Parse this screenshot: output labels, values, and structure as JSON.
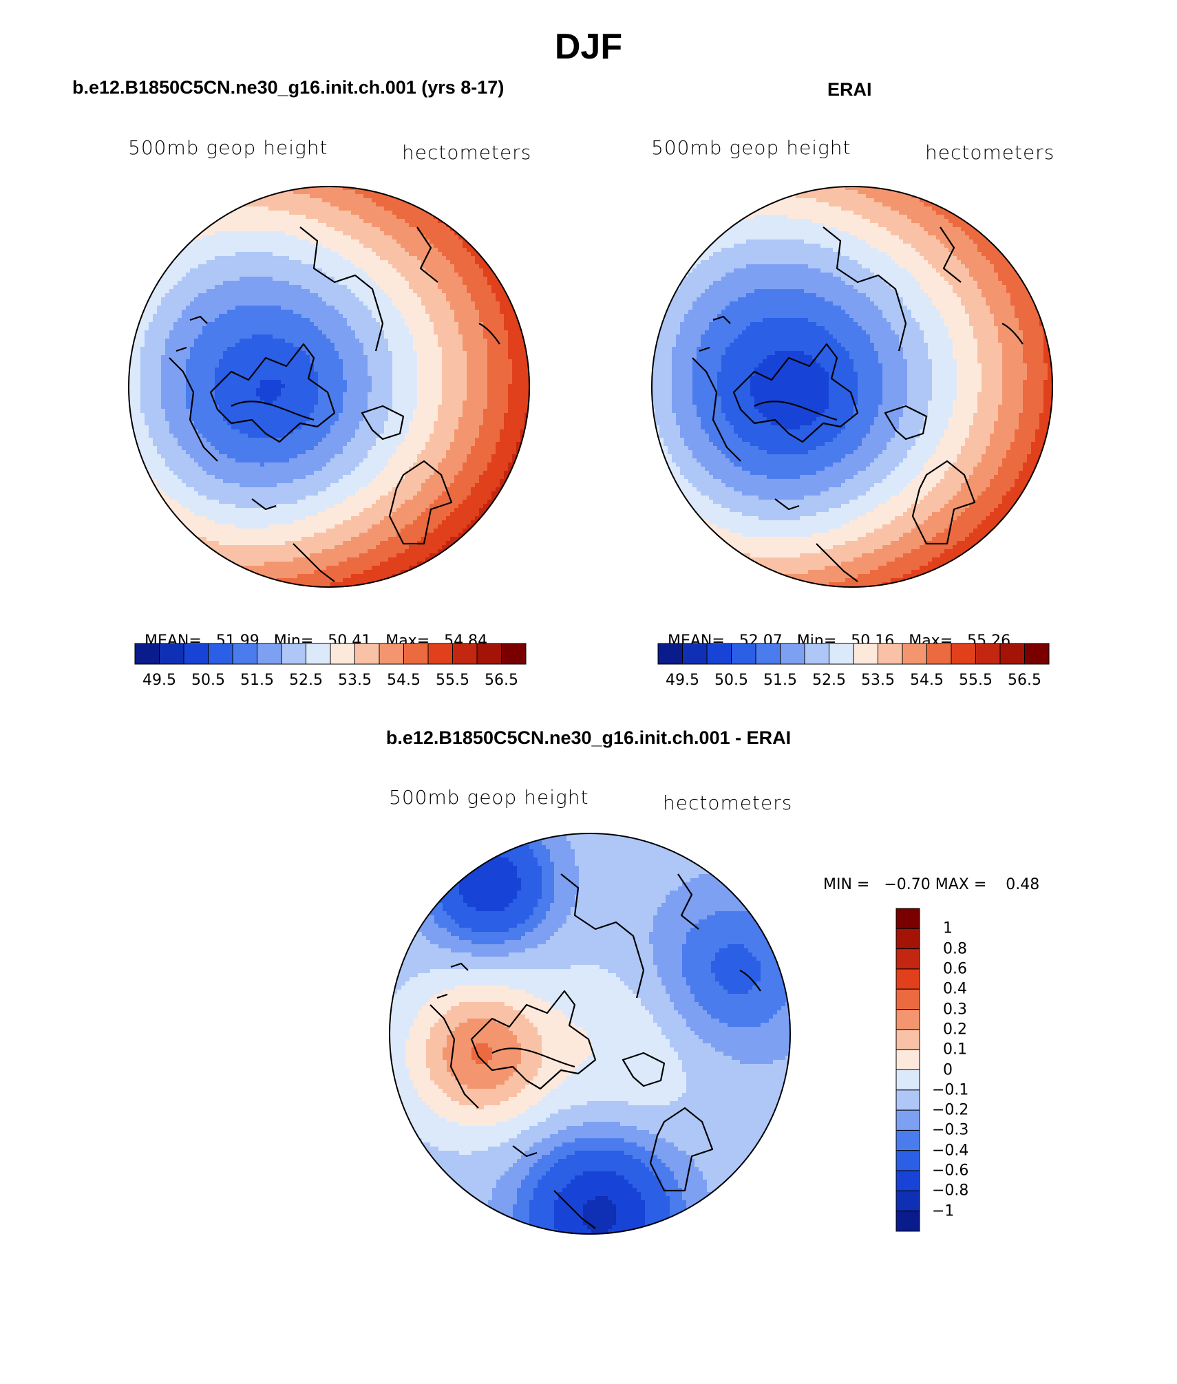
{
  "figure": {
    "title": "DJF"
  },
  "panels": {
    "model": {
      "title": "b.e12.B1850C5CN.ne30_g16.init.ch.001 (yrs 8-17)",
      "left_label": "500mb  geop  height",
      "right_label": "hectometers",
      "stats": {
        "mean_label": "MEAN=",
        "mean": "51.99",
        "min_label": "Min=",
        "min": "50.41",
        "max_label": "Max=",
        "max": "54.84"
      }
    },
    "obs": {
      "title": "ERAI",
      "left_label": "500mb  geop  height",
      "right_label": "hectometers",
      "stats": {
        "mean_label": "MEAN=",
        "mean": "52.07",
        "min_label": "Min=",
        "min": "50.16",
        "max_label": "Max=",
        "max": "55.26"
      }
    },
    "diff": {
      "title": "b.e12.B1850C5CN.ne30_g16.init.ch.001 - ERAI",
      "left_label": "500mb  geop  height",
      "right_label": "hectometers",
      "stats": {
        "min_label": "MIN =",
        "min": "−0.70",
        "max_label": "MAX =",
        "max": "0.48"
      }
    }
  },
  "chart_data": [
    {
      "type": "heatmap",
      "projection": "north-polar-stereographic",
      "title": "b.e12.B1850C5CN.ne30_g16.init.ch.001 (yrs 8-17)",
      "variable": "500mb geop height",
      "units": "hectometers",
      "mean": 51.99,
      "min": 50.41,
      "max": 54.84,
      "levels": [
        49.5,
        50,
        50.5,
        51,
        51.5,
        52,
        52.5,
        53,
        53.5,
        54,
        54.5,
        55,
        55.5,
        56,
        56.5
      ],
      "colorbar_tick_labels": [
        "49.5",
        "50.5",
        "51.5",
        "52.5",
        "53.5",
        "54.5",
        "55.5",
        "56.5"
      ],
      "colors": [
        "#0a1c8c",
        "#0f2fb5",
        "#1744d6",
        "#2a5fe6",
        "#4a7ced",
        "#7ea0f2",
        "#aec7f7",
        "#dce9fb",
        "#fde9dc",
        "#f9c2a6",
        "#f3966f",
        "#ec6a40",
        "#e0401b",
        "#c32711",
        "#a31407",
        "#7a0000"
      ]
    },
    {
      "type": "heatmap",
      "projection": "north-polar-stereographic",
      "title": "ERAI",
      "variable": "500mb geop height",
      "units": "hectometers",
      "mean": 52.07,
      "min": 50.16,
      "max": 55.26,
      "levels": [
        49.5,
        50,
        50.5,
        51,
        51.5,
        52,
        52.5,
        53,
        53.5,
        54,
        54.5,
        55,
        55.5,
        56,
        56.5
      ],
      "colorbar_tick_labels": [
        "49.5",
        "50.5",
        "51.5",
        "52.5",
        "53.5",
        "54.5",
        "55.5",
        "56.5"
      ],
      "colors": [
        "#0a1c8c",
        "#0f2fb5",
        "#1744d6",
        "#2a5fe6",
        "#4a7ced",
        "#7ea0f2",
        "#aec7f7",
        "#dce9fb",
        "#fde9dc",
        "#f9c2a6",
        "#f3966f",
        "#ec6a40",
        "#e0401b",
        "#c32711",
        "#a31407",
        "#7a0000"
      ]
    },
    {
      "type": "heatmap",
      "projection": "north-polar-stereographic",
      "title": "b.e12.B1850C5CN.ne30_g16.init.ch.001 - ERAI",
      "variable": "500mb geop height",
      "units": "hectometers",
      "min": -0.7,
      "max": 0.48,
      "levels": [
        -1,
        -0.8,
        -0.6,
        -0.4,
        -0.3,
        -0.2,
        -0.1,
        0,
        0.1,
        0.2,
        0.3,
        0.4,
        0.6,
        0.8,
        1
      ],
      "level_labels": [
        "−1",
        "−0.8",
        "−0.6",
        "−0.4",
        "−0.3",
        "−0.2",
        "−0.1",
        "0",
        "0.1",
        "0.2",
        "0.3",
        "0.4",
        "0.6",
        "0.8",
        "1"
      ],
      "colors": [
        "#0a1c8c",
        "#0f2fb5",
        "#1744d6",
        "#2a5fe6",
        "#4a7ced",
        "#7ea0f2",
        "#aec7f7",
        "#dce9fb",
        "#fde9dc",
        "#f9c2a6",
        "#f3966f",
        "#ec6a40",
        "#e0401b",
        "#c32711",
        "#a31407",
        "#7a0000"
      ]
    }
  ]
}
